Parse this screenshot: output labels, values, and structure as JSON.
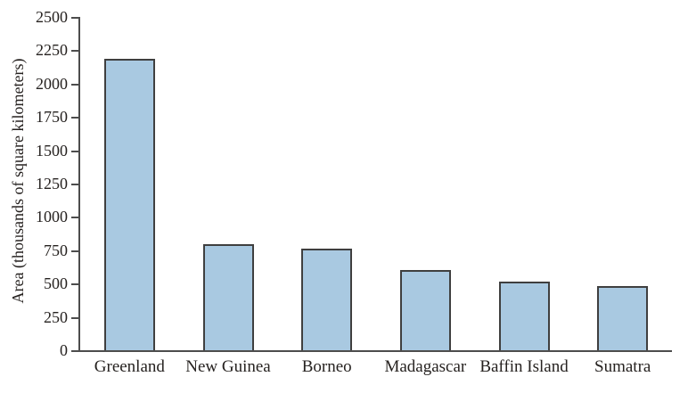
{
  "chart_data": {
    "type": "bar",
    "title": "",
    "categories": [
      "Greenland",
      "New Guinea",
      "Borneo",
      "Madagascar",
      "Baffin Island",
      "Sumatra"
    ],
    "values": [
      2175,
      785,
      750,
      587,
      500,
      470
    ],
    "xlabel": "",
    "ylabel": "Area (thousands of square kilometers)",
    "ylim": [
      0,
      2500
    ],
    "ytick_step": 250,
    "yticks": [
      0,
      250,
      500,
      750,
      1000,
      1250,
      1500,
      1750,
      2000,
      2250,
      2500
    ],
    "grid": false,
    "legend": false,
    "colors": {
      "bar_fill": "#A9C9E1",
      "bar_border": "#3F3F3F",
      "axis": "#4D4D4D",
      "text": "#262220",
      "background": "#FFFFFF"
    }
  }
}
